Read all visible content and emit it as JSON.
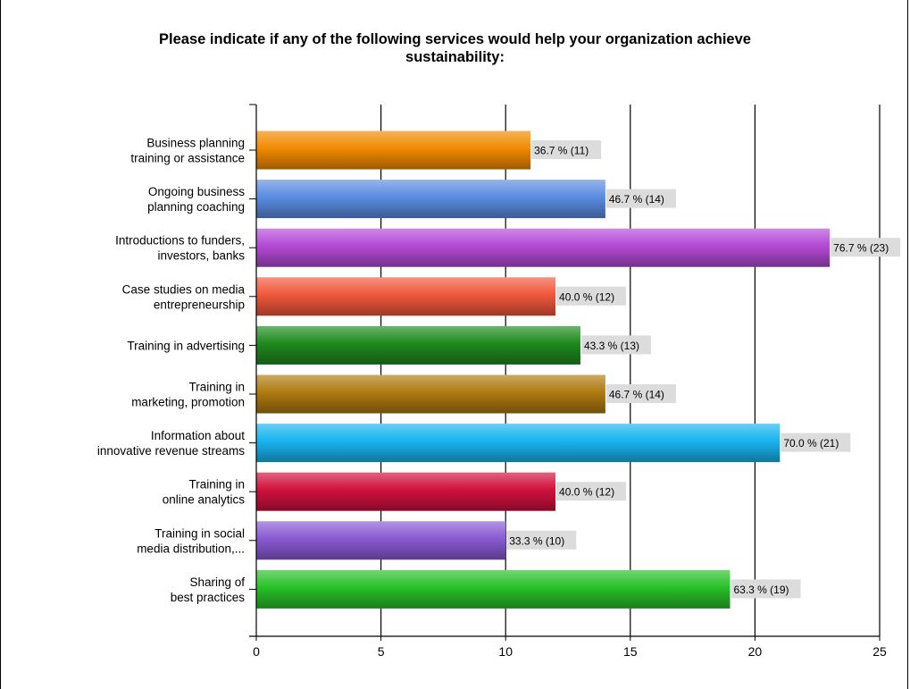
{
  "chart_data": {
    "type": "bar",
    "orientation": "horizontal",
    "title": "Please indicate if any of the following services would help your organization achieve\nsustainability:",
    "categories": [
      "Business planning\ntraining or assistance",
      "Ongoing business\nplanning coaching",
      "Introductions to funders,\ninvestors, banks",
      "Case studies on media\nentrepreneurship",
      "Training in advertising",
      "Training in\nmarketing, promotion",
      "Information about\ninnovative revenue streams",
      "Training in\nonline analytics",
      "Training in social\nmedia distribution,...",
      "Sharing of\nbest practices"
    ],
    "values": [
      11,
      14,
      23,
      12,
      13,
      14,
      21,
      12,
      10,
      19
    ],
    "data_labels": [
      "36.7 % (11)",
      "46.7 % (14)",
      "76.7 % (23)",
      "40.0 % (12)",
      "43.3 % (13)",
      "46.7 % (14)",
      "70.0 % (21)",
      "40.0 % (12)",
      "33.3 % (10)",
      "63.3 % (19)"
    ],
    "colors": [
      "#f28a00",
      "#5a8ce0",
      "#b44ad6",
      "#f0583c",
      "#1e8a1e",
      "#b07a10",
      "#18b4f0",
      "#d0103c",
      "#8a5ad2",
      "#28c028"
    ],
    "xlim": [
      0,
      25
    ],
    "x_ticks": [
      "0",
      "5",
      "10",
      "15",
      "20",
      "25"
    ],
    "grid": true
  }
}
